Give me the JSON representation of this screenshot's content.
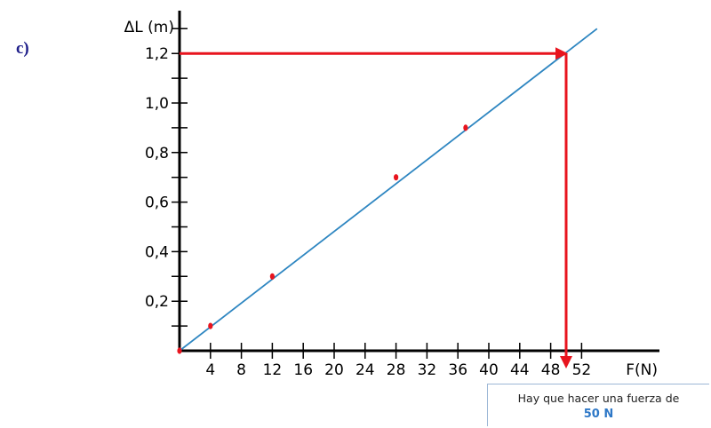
{
  "part_label": "c)",
  "chart_data": {
    "type": "line",
    "title": "",
    "xlabel": "F(N)",
    "ylabel": "ΔL (m)",
    "xlim": [
      0,
      56
    ],
    "ylim": [
      0,
      1.35
    ],
    "x_ticks": [
      4,
      8,
      12,
      16,
      20,
      24,
      28,
      32,
      36,
      40,
      44,
      48,
      52
    ],
    "x_tick_labels": [
      "4",
      "8",
      "12",
      "16",
      "20",
      "24",
      "28",
      "32",
      "36",
      "40",
      "44",
      "48",
      "52"
    ],
    "y_ticks": [
      0.2,
      0.4,
      0.6,
      0.8,
      1.0,
      1.2
    ],
    "y_tick_labels": [
      "0,2",
      "0,4",
      "0,6",
      "0,8",
      "1,0",
      "1,2"
    ],
    "grid": false,
    "points": [
      {
        "x": 0,
        "y": 0
      },
      {
        "x": 4,
        "y": 0.1
      },
      {
        "x": 12,
        "y": 0.3
      },
      {
        "x": 28,
        "y": 0.7
      },
      {
        "x": 37,
        "y": 0.9
      }
    ],
    "fit_line": {
      "x": [
        0,
        54
      ],
      "y": [
        0,
        1.3
      ]
    },
    "readout": {
      "y": 1.2,
      "x": 50
    },
    "colors": {
      "axis": "#000000",
      "line": "#2e86c1",
      "points": "#e8141e",
      "readout": "#e8141e"
    }
  },
  "note": {
    "text": "Hay que hacer una fuerza de",
    "value": "50 N"
  }
}
